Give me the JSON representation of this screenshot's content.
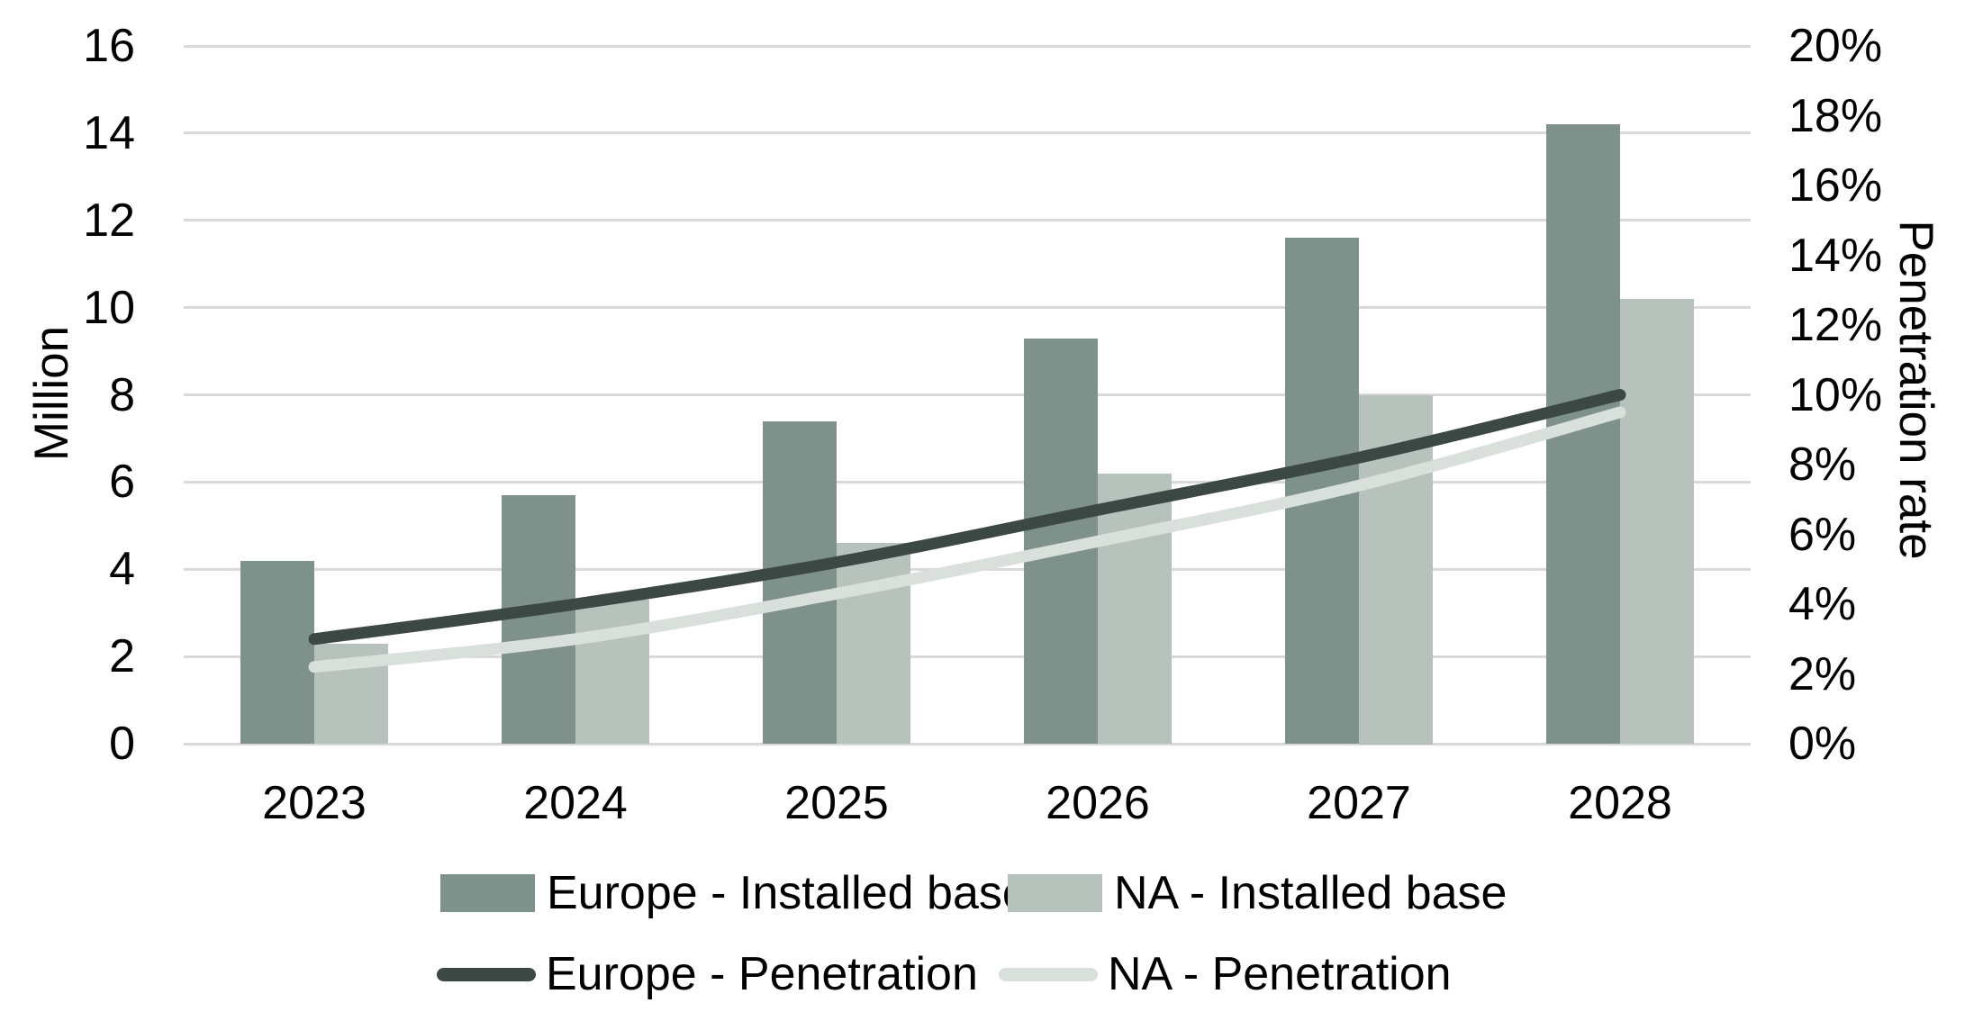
{
  "chart_data": {
    "type": "bar",
    "subtype": "combo-bar-line-dual-axis",
    "categories": [
      "2023",
      "2024",
      "2025",
      "2026",
      "2027",
      "2028"
    ],
    "bar_series": [
      {
        "name": "Europe - Installed base",
        "axis": "left",
        "unit": "million",
        "color": "#7E918A",
        "values": [
          4.2,
          5.7,
          7.4,
          9.3,
          11.6,
          14.2
        ]
      },
      {
        "name": "NA - Installed base",
        "axis": "left",
        "unit": "million",
        "color": "#B6C2BB",
        "values": [
          2.3,
          3.3,
          4.6,
          6.2,
          8.0,
          10.2
        ]
      }
    ],
    "line_series": [
      {
        "name": "Europe - Penetration",
        "axis": "right",
        "unit": "percent",
        "color": "#3C4843",
        "values": [
          3.0,
          4.0,
          5.2,
          6.7,
          8.2,
          10.0
        ]
      },
      {
        "name": "NA - Penetration",
        "axis": "right",
        "unit": "percent",
        "color": "#D9DFDB",
        "values": [
          2.2,
          3.0,
          4.3,
          5.8,
          7.4,
          9.5
        ]
      }
    ],
    "left_axis": {
      "title": "Million",
      "min": 0,
      "max": 16,
      "step": 2,
      "tick_labels": [
        "0",
        "2",
        "4",
        "6",
        "8",
        "10",
        "12",
        "14",
        "16"
      ]
    },
    "right_axis": {
      "title": "Penetration rate",
      "min": 0,
      "max": 20,
      "step": 2,
      "tick_labels": [
        "0%",
        "2%",
        "4%",
        "6%",
        "8%",
        "10%",
        "12%",
        "14%",
        "16%",
        "18%",
        "20%"
      ]
    },
    "grid": {
      "horizontal": true,
      "color": "#D9D9D9"
    },
    "background": "#FFFFFF",
    "legend_position": "bottom"
  }
}
